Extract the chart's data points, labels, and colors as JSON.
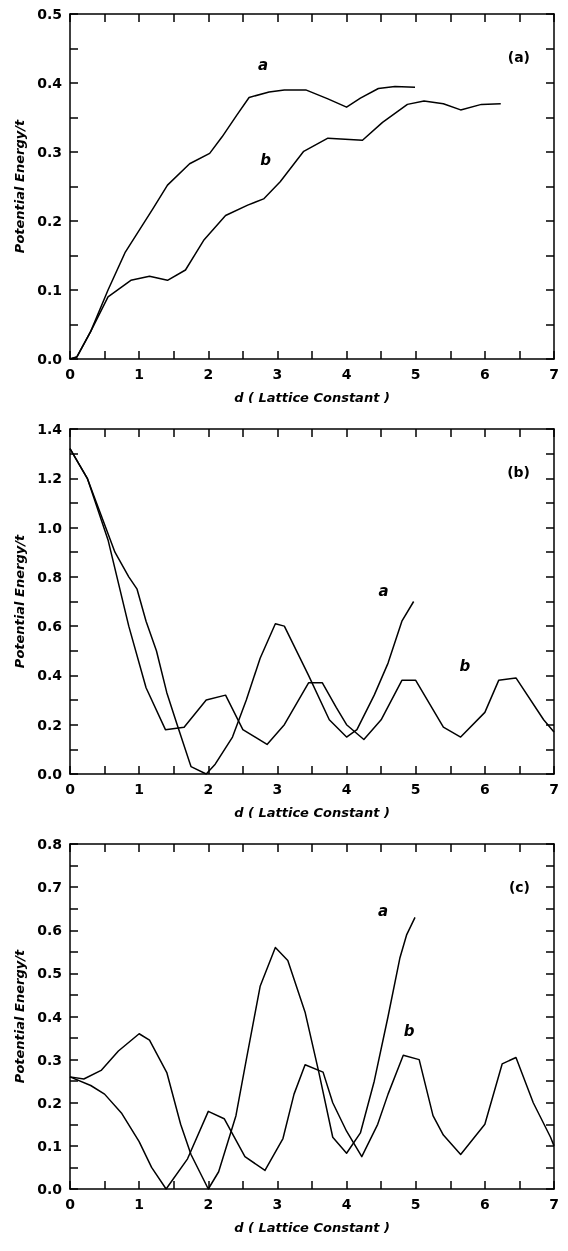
{
  "chart_data": [
    {
      "type": "line",
      "xlabel": "d ( Lattice Constant )",
      "ylabel": "Potential Energy/t",
      "annotations": [
        "(a)"
      ],
      "xlim": [
        0,
        7
      ],
      "ylim": [
        0,
        0.5
      ],
      "xticks": [
        0,
        {
          "value": 0.5,
          "label": null
        },
        1,
        {
          "value": 1.5,
          "label": null
        },
        2,
        {
          "value": 2.5,
          "label": null
        },
        3,
        {
          "value": 3.5,
          "label": null
        },
        4,
        {
          "value": 4.5,
          "label": null
        },
        5,
        {
          "value": 5.5,
          "label": null
        },
        6,
        {
          "value": 6.5,
          "label": null
        },
        7
      ],
      "yticks": [
        {
          "value": 0,
          "label": "0.0"
        },
        {
          "value": 0.05,
          "label": null
        },
        0.1,
        {
          "value": 0.15,
          "label": null
        },
        0.2,
        {
          "value": 0.25,
          "label": null
        },
        0.3,
        {
          "value": 0.35,
          "label": null
        },
        0.4,
        {
          "value": 0.45,
          "label": null
        },
        0.5
      ],
      "grid": false,
      "marker": "none",
      "line_style": "solid",
      "series": [
        {
          "name": "a",
          "color": "#000000",
          "x": [
            0,
            0.1,
            0.3,
            0.55,
            0.8,
            1.2,
            1.41,
            1.73,
            2.02,
            2.2,
            2.41,
            2.59,
            2.88,
            3.1,
            3.41,
            3.73,
            4.0,
            4.2,
            4.46,
            4.7,
            4.99
          ],
          "values": [
            0,
            0.003,
            0.04,
            0.1,
            0.155,
            0.218,
            0.252,
            0.283,
            0.298,
            0.322,
            0.353,
            0.379,
            0.387,
            0.39,
            0.39,
            0.377,
            0.365,
            0.378,
            0.392,
            0.395,
            0.394
          ]
        },
        {
          "name": "b",
          "color": "#000000",
          "x": [
            0,
            0.1,
            0.3,
            0.55,
            0.88,
            1.15,
            1.41,
            1.67,
            1.94,
            2.25,
            2.57,
            2.8,
            3.04,
            3.38,
            3.73,
            4.23,
            4.52,
            4.88,
            5.12,
            5.4,
            5.65,
            5.95,
            6.23
          ],
          "values": [
            0,
            0.003,
            0.04,
            0.09,
            0.114,
            0.12,
            0.114,
            0.129,
            0.173,
            0.208,
            0.223,
            0.232,
            0.257,
            0.301,
            0.32,
            0.317,
            0.343,
            0.369,
            0.374,
            0.37,
            0.361,
            0.369,
            0.37
          ]
        }
      ]
    },
    {
      "type": "line",
      "xlabel": "d ( Lattice Constant )",
      "ylabel": "Potential Energy/t",
      "annotations": [
        "(b)"
      ],
      "xlim": [
        0,
        7
      ],
      "ylim": [
        0,
        1.4
      ],
      "xticks": [
        0,
        {
          "value": 0.5,
          "label": null
        },
        1,
        {
          "value": 1.5,
          "label": null
        },
        2,
        {
          "value": 2.5,
          "label": null
        },
        3,
        {
          "value": 3.5,
          "label": null
        },
        4,
        {
          "value": 4.5,
          "label": null
        },
        5,
        {
          "value": 5.5,
          "label": null
        },
        6,
        {
          "value": 6.5,
          "label": null
        },
        7
      ],
      "yticks": [
        {
          "value": 0,
          "label": "0.0"
        },
        {
          "value": 0.1,
          "label": null
        },
        0.2,
        {
          "value": 0.3,
          "label": null
        },
        0.4,
        {
          "value": 0.5,
          "label": null
        },
        0.6,
        {
          "value": 0.7,
          "label": null
        },
        0.8,
        {
          "value": 0.9,
          "label": null
        },
        {
          "value": 1,
          "label": "1.0"
        },
        {
          "value": 1.1,
          "label": null
        },
        1.2,
        {
          "value": 1.3,
          "label": null
        },
        1.4
      ],
      "grid": false,
      "marker": "none",
      "line_style": "solid",
      "series": [
        {
          "name": "a",
          "color": "#000000",
          "x": [
            0,
            0.25,
            0.45,
            0.65,
            0.85,
            0.97,
            1.1,
            1.25,
            1.4,
            1.55,
            1.75,
            1.97,
            2.1,
            2.35,
            2.55,
            2.75,
            2.97,
            3.1,
            3.45,
            3.75,
            4.0,
            4.15,
            4.4,
            4.6,
            4.8,
            4.97
          ],
          "values": [
            1.32,
            1.2,
            1.05,
            0.9,
            0.8,
            0.75,
            0.62,
            0.5,
            0.33,
            0.2,
            0.03,
            0,
            0.04,
            0.15,
            0.3,
            0.47,
            0.61,
            0.6,
            0.4,
            0.22,
            0.15,
            0.18,
            0.32,
            0.45,
            0.62,
            0.7
          ]
        },
        {
          "name": "b",
          "color": "#000000",
          "x": [
            0,
            0.25,
            0.55,
            0.85,
            1.1,
            1.38,
            1.65,
            1.97,
            2.25,
            2.5,
            2.85,
            3.1,
            3.45,
            3.65,
            3.85,
            4.0,
            4.25,
            4.5,
            4.8,
            5.0,
            5.4,
            5.65,
            6.0,
            6.2,
            6.45,
            6.85,
            7.0
          ],
          "values": [
            1.32,
            1.2,
            0.95,
            0.6,
            0.35,
            0.18,
            0.19,
            0.3,
            0.32,
            0.18,
            0.12,
            0.2,
            0.37,
            0.37,
            0.27,
            0.2,
            0.14,
            0.22,
            0.38,
            0.38,
            0.19,
            0.15,
            0.25,
            0.38,
            0.39,
            0.22,
            0.17
          ]
        }
      ]
    },
    {
      "type": "line",
      "xlabel": "d ( Lattice Constant )",
      "ylabel": "Potential Energy/t",
      "annotations": [
        "(c)"
      ],
      "xlim": [
        0,
        7
      ],
      "ylim": [
        0,
        0.8
      ],
      "xticks": [
        0,
        {
          "value": 0.5,
          "label": null
        },
        1,
        {
          "value": 1.5,
          "label": null
        },
        2,
        {
          "value": 2.5,
          "label": null
        },
        3,
        {
          "value": 3.5,
          "label": null
        },
        4,
        {
          "value": 4.5,
          "label": null
        },
        5,
        {
          "value": 5.5,
          "label": null
        },
        6,
        {
          "value": 6.5,
          "label": null
        },
        7
      ],
      "yticks": [
        {
          "value": 0,
          "label": "0.0"
        },
        {
          "value": 0.05,
          "label": null
        },
        0.1,
        {
          "value": 0.15,
          "label": null
        },
        0.2,
        {
          "value": 0.25,
          "label": null
        },
        0.3,
        {
          "value": 0.35,
          "label": null
        },
        0.4,
        {
          "value": 0.45,
          "label": null
        },
        0.5,
        {
          "value": 0.55,
          "label": null
        },
        0.6,
        {
          "value": 0.65,
          "label": null
        },
        0.7,
        {
          "value": 0.75,
          "label": null
        },
        0.8
      ],
      "grid": false,
      "marker": "none",
      "line_style": "solid",
      "series": [
        {
          "name": "a",
          "color": "#000000",
          "x": [
            0,
            0.2,
            0.45,
            0.7,
            1.0,
            1.15,
            1.4,
            1.6,
            1.75,
            2.0,
            2.15,
            2.4,
            2.55,
            2.75,
            2.97,
            3.15,
            3.4,
            3.6,
            3.8,
            4.0,
            4.2,
            4.4,
            4.6,
            4.77,
            4.87,
            4.99
          ],
          "values": [
            0.26,
            0.255,
            0.275,
            0.32,
            0.36,
            0.345,
            0.27,
            0.15,
            0.08,
            0,
            0.04,
            0.17,
            0.3,
            0.47,
            0.56,
            0.53,
            0.41,
            0.27,
            0.12,
            0.083,
            0.13,
            0.25,
            0.4,
            0.535,
            0.59,
            0.63
          ]
        },
        {
          "name": "b",
          "color": "#000000",
          "x": [
            0,
            0.3,
            0.5,
            0.75,
            1.0,
            1.18,
            1.39,
            1.7,
            2.0,
            2.23,
            2.53,
            2.82,
            3.08,
            3.24,
            3.4,
            3.66,
            3.8,
            4.0,
            4.22,
            4.45,
            4.6,
            4.82,
            5.05,
            5.25,
            5.4,
            5.65,
            6.0,
            6.25,
            6.45,
            6.7,
            6.95,
            7.0
          ],
          "values": [
            0.26,
            0.24,
            0.22,
            0.175,
            0.11,
            0.05,
            0,
            0.07,
            0.18,
            0.163,
            0.075,
            0.043,
            0.117,
            0.22,
            0.288,
            0.271,
            0.2,
            0.134,
            0.075,
            0.15,
            0.22,
            0.31,
            0.3,
            0.17,
            0.125,
            0.08,
            0.15,
            0.29,
            0.305,
            0.2,
            0.12,
            0.1
          ]
        }
      ]
    }
  ]
}
